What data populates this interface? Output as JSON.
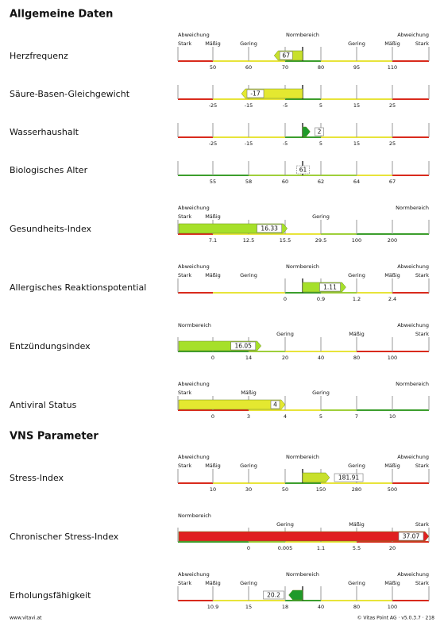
{
  "sections": [
    {
      "title": "Allgemeine Daten",
      "rows": [
        {
          "label": "Herzfrequenz",
          "header_top": [
            "Abweichung",
            "Normbereich",
            "Abweichung"
          ],
          "header_bottom": [
            "Stark",
            "Mäßig",
            "Gering",
            null,
            null,
            "Gering",
            "Mäßig",
            "Stark"
          ],
          "ticks": [
            50,
            60,
            70,
            80,
            95,
            110
          ],
          "value": 67,
          "anchor": "center",
          "color": "#c8e02c",
          "band": [
            "#d92a1c",
            "#e8e43a",
            "#e8e43a",
            "#3c9e2c",
            "#e8e43a",
            "#e8e43a",
            "#d92a1c"
          ]
        },
        {
          "label": "Säure-Basen-Gleichgewicht",
          "ticks": [
            -25,
            -15,
            -5,
            5,
            15,
            25
          ],
          "value": -17,
          "anchor": "center",
          "color": "#e4e830",
          "band": [
            "#d92a1c",
            "#e8e43a",
            "#e8e43a",
            "#3c9e2c",
            "#e8e43a",
            "#e8e43a",
            "#d92a1c"
          ]
        },
        {
          "label": "Wasserhaushalt",
          "ticks": [
            -25,
            -15,
            -5,
            5,
            15,
            25
          ],
          "value": 2,
          "anchor": "center",
          "color": "#1f9a2a",
          "band": [
            "#d92a1c",
            "#e8e43a",
            "#e8e43a",
            "#3c9e2c",
            "#e8e43a",
            "#e8e43a",
            "#d92a1c"
          ]
        },
        {
          "label": "Biologisches Alter",
          "ticks": [
            55,
            58,
            60,
            62,
            64,
            67
          ],
          "value": 61,
          "anchor": "center",
          "band": [
            "#3c9e2c",
            "#3c9e2c",
            "#9fcf3a",
            "#9fcf3a",
            "#9fcf3a",
            "#e8e43a",
            "#d92a1c"
          ]
        },
        {
          "label": "Gesundheits-Index",
          "header_top": [
            "Abweichung",
            null,
            "Normbereich"
          ],
          "header_bottom": [
            "Stark",
            "Mäßig",
            null,
            null,
            "Gering",
            null,
            null,
            null
          ],
          "ticks": [
            7.1,
            12.5,
            15.5,
            29.5,
            100,
            200
          ],
          "value": 16.33,
          "anchor": "left",
          "color": "#a6e02a",
          "band": [
            "#d92a1c",
            "#e8e43a",
            "#e8e43a",
            "#e8e43a",
            "#9fcf3a",
            "#3c9e2c",
            "#3c9e2c"
          ]
        },
        {
          "label": "Allergisches Reaktionspotential",
          "header_top": [
            "Abweichung",
            "Normbereich",
            "Abweichung"
          ],
          "header_bottom": [
            "Stark",
            "Mäßig",
            "Gering",
            null,
            null,
            "Gering",
            "Mäßig",
            "Stark"
          ],
          "ticks": [
            null,
            null,
            0,
            0.9,
            1.2,
            2.4
          ],
          "value": 1.11,
          "anchor": "center",
          "color": "#a6e02a",
          "band": [
            "#d92a1c",
            "#e8e43a",
            "#e8e43a",
            "#3c9e2c",
            "#9fcf3a",
            "#e8e43a",
            "#d92a1c"
          ]
        },
        {
          "label": "Entzündungsindex",
          "header_top": [
            "Normbereich",
            null,
            "Abweichung"
          ],
          "header_bottom": [
            null,
            null,
            null,
            "Gering",
            null,
            "Mäßig",
            null,
            "Stark"
          ],
          "ticks": [
            0,
            14,
            20,
            40,
            80,
            100
          ],
          "value": 16.05,
          "anchor": "left",
          "color": "#a6e02a",
          "band": [
            "#3c9e2c",
            "#3c9e2c",
            "#9fcf3a",
            "#e8e43a",
            "#e8e43a",
            "#d92a1c",
            "#d92a1c"
          ]
        },
        {
          "label": "Antiviral Status",
          "header_top": [
            "Abweichung",
            null,
            "Normbereich"
          ],
          "header_bottom": [
            "Stark",
            null,
            "Mäßig",
            null,
            "Gering",
            null,
            null,
            null
          ],
          "ticks": [
            0,
            3,
            4,
            5,
            7,
            10
          ],
          "value": 4,
          "anchor": "left",
          "color": "#e4e830",
          "band": [
            "#d92a1c",
            "#d92a1c",
            "#e8e43a",
            "#e8e43a",
            "#9fcf3a",
            "#3c9e2c",
            "#3c9e2c"
          ]
        }
      ]
    },
    {
      "title": "VNS Parameter",
      "rows": [
        {
          "label": "Stress-Index",
          "header_top": [
            "Abweichung",
            "Normbereich",
            "Abweichung"
          ],
          "header_bottom": [
            "Stark",
            "Mäßig",
            "Gering",
            null,
            null,
            "Gering",
            "Mäßig",
            "Stark"
          ],
          "ticks": [
            10,
            30,
            50,
            150,
            280,
            500
          ],
          "value": 181.91,
          "anchor": "center",
          "color": "#c8e02c",
          "band": [
            "#d92a1c",
            "#e8e43a",
            "#e8e43a",
            "#3c9e2c",
            "#e8e43a",
            "#e8e43a",
            "#d92a1c"
          ]
        },
        {
          "label": "Chronischer Stress-Index",
          "header_top": [
            "Normbereich",
            null,
            null
          ],
          "header_bottom": [
            null,
            null,
            null,
            "Gering",
            null,
            "Mäßig",
            null,
            "Stark"
          ],
          "ticks": [
            null,
            0,
            0.005,
            1.1,
            5.5,
            20
          ],
          "value": 37.07,
          "anchor": "left",
          "color": "#e02020",
          "band": [
            "#3c9e2c",
            "#3c9e2c",
            "#9fcf3a",
            "#e8e43a",
            "#e8e43a",
            "#d92a1c",
            "#d92a1c"
          ]
        },
        {
          "label": "Erholungsfähigkeit",
          "header_top": [
            "Abweichung",
            "Normbereich",
            "Abweichung"
          ],
          "header_bottom": [
            "Stark",
            "Mäßig",
            "Gering",
            null,
            null,
            "Gering",
            "Mäßig",
            "Stark"
          ],
          "ticks": [
            10.9,
            15,
            18,
            40,
            80,
            100
          ],
          "value": 20.2,
          "anchor": "center",
          "color": "#1f9a2a",
          "band": [
            "#d92a1c",
            "#e8e43a",
            "#e8e43a",
            "#3c9e2c",
            "#e8e43a",
            "#e8e43a",
            "#d92a1c"
          ]
        }
      ]
    }
  ],
  "footer": {
    "left": "www.vitavi.at",
    "right": "© Vitas Point AG · v5.0.3.7 · 218"
  }
}
